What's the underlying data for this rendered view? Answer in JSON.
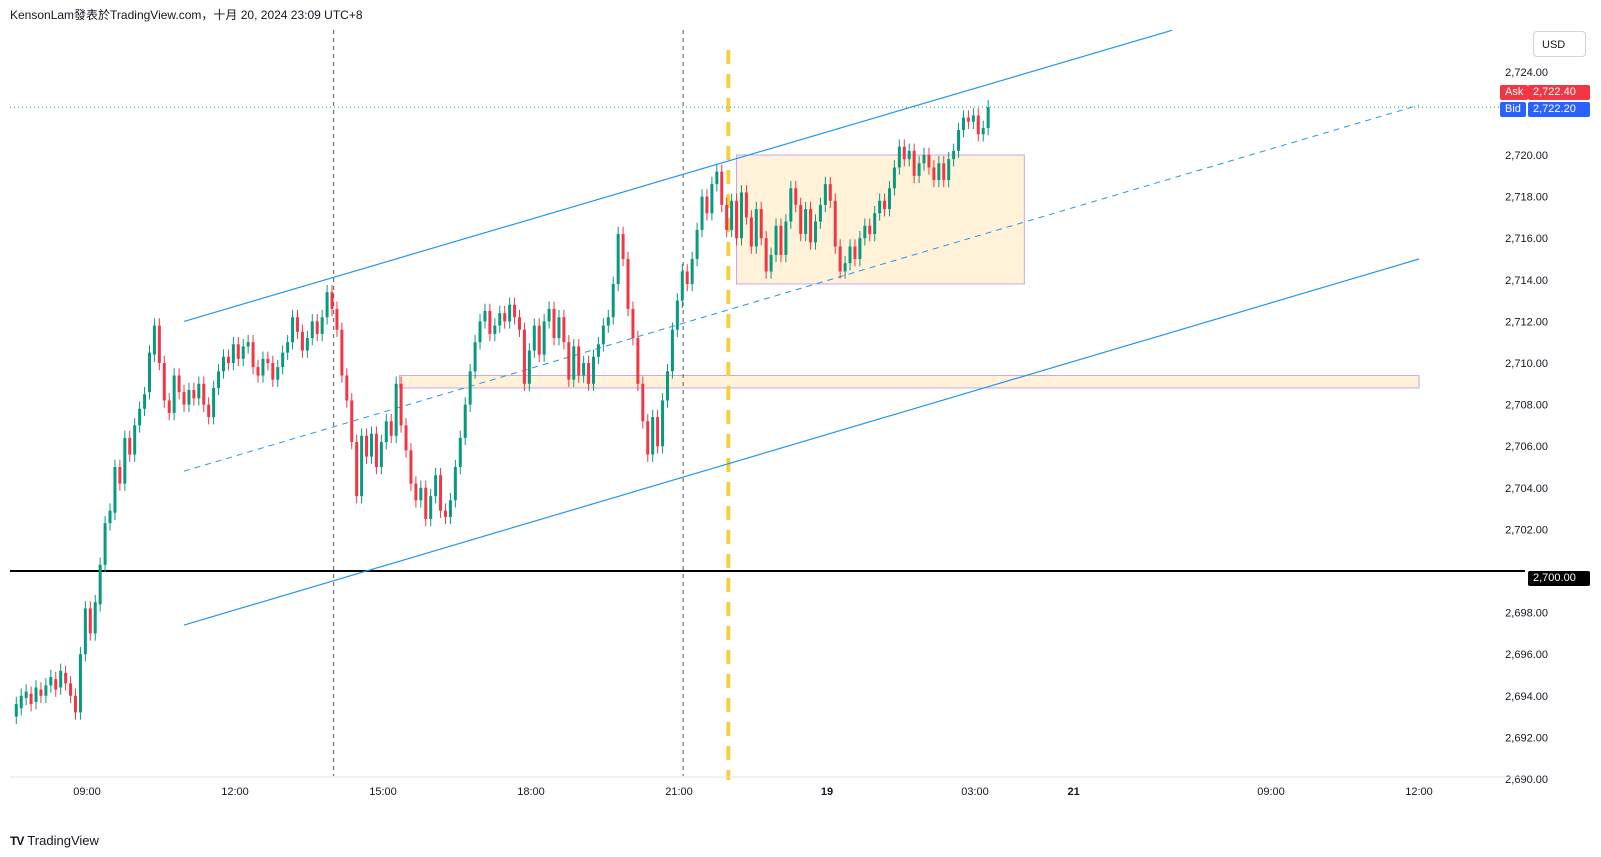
{
  "header": {
    "title": "KensonLam發表於TradingView.com，十月 20, 2024 23:09 UTC+8"
  },
  "currency": "USD",
  "footer": {
    "brand": "TradingView"
  },
  "quotes": {
    "ask_label": "Ask",
    "ask_value": "2,722.40",
    "bid_label": "Bid",
    "bid_value": "2,722.20",
    "level_value": "2,700.00"
  },
  "colors": {
    "up": "#089981",
    "down": "#f23645",
    "channel": "#2196f3",
    "zone_fill": "#fff2d9",
    "zone_border": "#c9a6e8",
    "session_marker": "#f5d142",
    "ask": "#f23645",
    "bid": "#2962ff"
  },
  "chart_data": {
    "type": "candlestick",
    "symbol_currency": "USD",
    "y_ticks": [
      "2,724.00",
      "2,722.00",
      "2,720.00",
      "2,718.00",
      "2,716.00",
      "2,714.00",
      "2,712.00",
      "2,710.00",
      "2,708.00",
      "2,706.00",
      "2,704.00",
      "2,702.00",
      "2,700.00",
      "2,698.00",
      "2,696.00",
      "2,694.00",
      "2,692.00",
      "2,690.00"
    ],
    "x_ticks": [
      {
        "label": "09:00",
        "t": 0
      },
      {
        "label": "12:00",
        "t": 180
      },
      {
        "label": "15:00",
        "t": 360
      },
      {
        "label": "18:00",
        "t": 540
      },
      {
        "label": "21:00",
        "t": 720
      },
      {
        "label": "19",
        "t": 900
      },
      {
        "label": "03:00",
        "t": 1080
      },
      {
        "label": "21",
        "t": 1200
      },
      {
        "label": "09:00",
        "t": 1440
      },
      {
        "label": "12:00",
        "t": 1620
      }
    ],
    "horizontal_level": 2700.0,
    "last_price_level": 2722.3,
    "ask": 2722.4,
    "bid": 2722.2,
    "candles_approx": [
      {
        "t": -86,
        "o": 2693.0,
        "c": 2693.6
      },
      {
        "t": -80,
        "o": 2693.4,
        "c": 2694.0
      },
      {
        "t": -74,
        "o": 2693.9,
        "c": 2694.2
      },
      {
        "t": -68,
        "o": 2694.1,
        "c": 2693.6
      },
      {
        "t": -62,
        "o": 2693.7,
        "c": 2694.4
      },
      {
        "t": -56,
        "o": 2694.3,
        "c": 2694.0
      },
      {
        "t": -50,
        "o": 2694.0,
        "c": 2694.5
      },
      {
        "t": -44,
        "o": 2694.5,
        "c": 2694.9
      },
      {
        "t": -38,
        "o": 2694.8,
        "c": 2694.3
      },
      {
        "t": -32,
        "o": 2694.4,
        "c": 2695.2
      },
      {
        "t": -26,
        "o": 2695.1,
        "c": 2694.6
      },
      {
        "t": -20,
        "o": 2694.6,
        "c": 2694.0
      },
      {
        "t": -14,
        "o": 2694.0,
        "c": 2693.2
      },
      {
        "t": -8,
        "o": 2693.2,
        "c": 2696.0
      },
      {
        "t": -2,
        "o": 2696.0,
        "c": 2698.2
      },
      {
        "t": 4,
        "o": 2698.2,
        "c": 2697.0
      },
      {
        "t": 10,
        "o": 2697.0,
        "c": 2698.5
      },
      {
        "t": 16,
        "o": 2698.4,
        "c": 2700.3
      },
      {
        "t": 22,
        "o": 2700.3,
        "c": 2702.3
      },
      {
        "t": 28,
        "o": 2702.3,
        "c": 2702.9
      },
      {
        "t": 34,
        "o": 2702.8,
        "c": 2705.0
      },
      {
        "t": 40,
        "o": 2705.0,
        "c": 2704.2
      },
      {
        "t": 46,
        "o": 2704.2,
        "c": 2706.4
      },
      {
        "t": 52,
        "o": 2706.4,
        "c": 2705.6
      },
      {
        "t": 58,
        "o": 2705.6,
        "c": 2707.0
      },
      {
        "t": 64,
        "o": 2707.0,
        "c": 2707.8
      },
      {
        "t": 70,
        "o": 2707.8,
        "c": 2708.5
      },
      {
        "t": 76,
        "o": 2708.6,
        "c": 2710.5
      },
      {
        "t": 82,
        "o": 2710.4,
        "c": 2711.8
      },
      {
        "t": 88,
        "o": 2711.8,
        "c": 2710.0
      },
      {
        "t": 94,
        "o": 2710.0,
        "c": 2708.2
      },
      {
        "t": 100,
        "o": 2708.2,
        "c": 2707.6
      },
      {
        "t": 106,
        "o": 2707.6,
        "c": 2709.4
      },
      {
        "t": 112,
        "o": 2709.4,
        "c": 2708.6
      },
      {
        "t": 118,
        "o": 2708.6,
        "c": 2708.0
      },
      {
        "t": 124,
        "o": 2708.0,
        "c": 2708.7
      },
      {
        "t": 130,
        "o": 2708.7,
        "c": 2708.3
      },
      {
        "t": 136,
        "o": 2708.3,
        "c": 2709.0
      },
      {
        "t": 142,
        "o": 2709.0,
        "c": 2708.0
      },
      {
        "t": 148,
        "o": 2708.0,
        "c": 2707.4
      },
      {
        "t": 154,
        "o": 2707.4,
        "c": 2708.8
      },
      {
        "t": 160,
        "o": 2708.8,
        "c": 2709.6
      },
      {
        "t": 166,
        "o": 2709.6,
        "c": 2710.3
      },
      {
        "t": 172,
        "o": 2710.3,
        "c": 2710.0
      },
      {
        "t": 178,
        "o": 2710.0,
        "c": 2710.9
      },
      {
        "t": 184,
        "o": 2710.9,
        "c": 2710.2
      },
      {
        "t": 190,
        "o": 2710.2,
        "c": 2710.8
      },
      {
        "t": 196,
        "o": 2710.8,
        "c": 2711.0
      },
      {
        "t": 202,
        "o": 2711.0,
        "c": 2709.8
      },
      {
        "t": 208,
        "o": 2709.8,
        "c": 2709.4
      },
      {
        "t": 214,
        "o": 2709.4,
        "c": 2710.2
      },
      {
        "t": 220,
        "o": 2710.2,
        "c": 2710.0
      },
      {
        "t": 226,
        "o": 2710.0,
        "c": 2709.2
      },
      {
        "t": 232,
        "o": 2709.2,
        "c": 2709.8
      },
      {
        "t": 238,
        "o": 2709.8,
        "c": 2710.5
      },
      {
        "t": 244,
        "o": 2710.5,
        "c": 2711.0
      },
      {
        "t": 250,
        "o": 2711.0,
        "c": 2712.2
      },
      {
        "t": 256,
        "o": 2712.2,
        "c": 2711.5
      },
      {
        "t": 262,
        "o": 2711.5,
        "c": 2710.6
      },
      {
        "t": 268,
        "o": 2710.6,
        "c": 2711.2
      },
      {
        "t": 274,
        "o": 2711.2,
        "c": 2712.0
      },
      {
        "t": 280,
        "o": 2712.0,
        "c": 2711.4
      },
      {
        "t": 286,
        "o": 2711.4,
        "c": 2712.2
      },
      {
        "t": 292,
        "o": 2712.2,
        "c": 2713.4
      },
      {
        "t": 298,
        "o": 2713.4,
        "c": 2712.6
      },
      {
        "t": 304,
        "o": 2712.6,
        "c": 2711.6
      },
      {
        "t": 310,
        "o": 2711.6,
        "c": 2709.4
      },
      {
        "t": 316,
        "o": 2709.4,
        "c": 2708.2
      },
      {
        "t": 322,
        "o": 2708.2,
        "c": 2706.2
      },
      {
        "t": 328,
        "o": 2706.2,
        "c": 2703.6
      },
      {
        "t": 334,
        "o": 2703.6,
        "c": 2706.5
      },
      {
        "t": 340,
        "o": 2706.5,
        "c": 2705.5
      },
      {
        "t": 346,
        "o": 2705.5,
        "c": 2706.6
      },
      {
        "t": 352,
        "o": 2706.6,
        "c": 2705.0
      },
      {
        "t": 358,
        "o": 2705.0,
        "c": 2706.2
      },
      {
        "t": 364,
        "o": 2706.2,
        "c": 2707.2
      },
      {
        "t": 370,
        "o": 2707.2,
        "c": 2706.5
      },
      {
        "t": 376,
        "o": 2706.5,
        "c": 2709.0
      },
      {
        "t": 382,
        "o": 2709.0,
        "c": 2707.0
      },
      {
        "t": 388,
        "o": 2707.0,
        "c": 2705.8
      },
      {
        "t": 394,
        "o": 2705.8,
        "c": 2704.2
      },
      {
        "t": 400,
        "o": 2704.2,
        "c": 2703.4
      },
      {
        "t": 406,
        "o": 2703.4,
        "c": 2704.0
      },
      {
        "t": 412,
        "o": 2704.0,
        "c": 2702.5
      },
      {
        "t": 418,
        "o": 2702.5,
        "c": 2703.6
      },
      {
        "t": 424,
        "o": 2703.6,
        "c": 2704.6
      },
      {
        "t": 430,
        "o": 2704.6,
        "c": 2702.9
      },
      {
        "t": 436,
        "o": 2702.9,
        "c": 2702.6
      },
      {
        "t": 442,
        "o": 2702.6,
        "c": 2703.4
      },
      {
        "t": 448,
        "o": 2703.4,
        "c": 2705.0
      },
      {
        "t": 454,
        "o": 2705.0,
        "c": 2706.4
      },
      {
        "t": 460,
        "o": 2706.4,
        "c": 2708.0
      },
      {
        "t": 466,
        "o": 2708.0,
        "c": 2709.6
      },
      {
        "t": 472,
        "o": 2709.6,
        "c": 2711.0
      },
      {
        "t": 478,
        "o": 2711.0,
        "c": 2712.0
      },
      {
        "t": 484,
        "o": 2712.0,
        "c": 2712.5
      },
      {
        "t": 490,
        "o": 2712.5,
        "c": 2711.4
      },
      {
        "t": 496,
        "o": 2711.4,
        "c": 2711.8
      },
      {
        "t": 502,
        "o": 2711.8,
        "c": 2712.4
      },
      {
        "t": 508,
        "o": 2712.4,
        "c": 2712.0
      },
      {
        "t": 514,
        "o": 2712.0,
        "c": 2712.8
      },
      {
        "t": 520,
        "o": 2712.8,
        "c": 2712.2
      },
      {
        "t": 526,
        "o": 2712.2,
        "c": 2711.6
      },
      {
        "t": 532,
        "o": 2711.6,
        "c": 2709.0
      },
      {
        "t": 538,
        "o": 2709.0,
        "c": 2710.6
      },
      {
        "t": 544,
        "o": 2710.6,
        "c": 2711.8
      },
      {
        "t": 550,
        "o": 2711.8,
        "c": 2710.4
      },
      {
        "t": 556,
        "o": 2710.4,
        "c": 2712.0
      },
      {
        "t": 562,
        "o": 2712.0,
        "c": 2712.6
      },
      {
        "t": 568,
        "o": 2712.6,
        "c": 2711.2
      },
      {
        "t": 574,
        "o": 2711.2,
        "c": 2712.2
      },
      {
        "t": 580,
        "o": 2712.2,
        "c": 2711.0
      },
      {
        "t": 586,
        "o": 2711.0,
        "c": 2709.2
      },
      {
        "t": 592,
        "o": 2709.2,
        "c": 2710.8
      },
      {
        "t": 598,
        "o": 2710.8,
        "c": 2709.4
      },
      {
        "t": 604,
        "o": 2709.4,
        "c": 2710.0
      },
      {
        "t": 610,
        "o": 2710.0,
        "c": 2709.0
      },
      {
        "t": 616,
        "o": 2709.0,
        "c": 2710.3
      },
      {
        "t": 622,
        "o": 2710.3,
        "c": 2710.9
      },
      {
        "t": 628,
        "o": 2710.9,
        "c": 2711.8
      },
      {
        "t": 634,
        "o": 2711.8,
        "c": 2712.2
      },
      {
        "t": 640,
        "o": 2712.2,
        "c": 2713.8
      },
      {
        "t": 646,
        "o": 2713.8,
        "c": 2716.2
      },
      {
        "t": 652,
        "o": 2716.2,
        "c": 2715.0
      },
      {
        "t": 658,
        "o": 2715.0,
        "c": 2712.6
      },
      {
        "t": 664,
        "o": 2712.6,
        "c": 2711.2
      },
      {
        "t": 670,
        "o": 2711.2,
        "c": 2709.0
      },
      {
        "t": 676,
        "o": 2709.0,
        "c": 2707.2
      },
      {
        "t": 682,
        "o": 2707.2,
        "c": 2705.6
      },
      {
        "t": 688,
        "o": 2705.6,
        "c": 2707.4
      },
      {
        "t": 694,
        "o": 2707.4,
        "c": 2706.0
      },
      {
        "t": 700,
        "o": 2706.0,
        "c": 2708.2
      },
      {
        "t": 706,
        "o": 2708.2,
        "c": 2709.6
      },
      {
        "t": 712,
        "o": 2709.6,
        "c": 2711.6
      },
      {
        "t": 718,
        "o": 2711.6,
        "c": 2713.0
      },
      {
        "t": 724,
        "o": 2713.0,
        "c": 2714.4
      },
      {
        "t": 730,
        "o": 2714.4,
        "c": 2713.8
      },
      {
        "t": 736,
        "o": 2713.8,
        "c": 2715.0
      },
      {
        "t": 742,
        "o": 2715.0,
        "c": 2716.4
      },
      {
        "t": 748,
        "o": 2716.4,
        "c": 2718.0
      },
      {
        "t": 754,
        "o": 2718.0,
        "c": 2717.2
      },
      {
        "t": 760,
        "o": 2717.2,
        "c": 2718.6
      },
      {
        "t": 766,
        "o": 2718.6,
        "c": 2719.2
      },
      {
        "t": 772,
        "o": 2719.2,
        "c": 2717.6
      },
      {
        "t": 778,
        "o": 2717.6,
        "c": 2716.4
      },
      {
        "t": 784,
        "o": 2716.4,
        "c": 2717.8
      },
      {
        "t": 790,
        "o": 2717.8,
        "c": 2716.0
      },
      {
        "t": 796,
        "o": 2716.0,
        "c": 2718.2
      },
      {
        "t": 802,
        "o": 2718.2,
        "c": 2717.0
      },
      {
        "t": 808,
        "o": 2717.0,
        "c": 2715.6
      },
      {
        "t": 814,
        "o": 2715.6,
        "c": 2717.4
      },
      {
        "t": 820,
        "o": 2717.4,
        "c": 2716.0
      },
      {
        "t": 826,
        "o": 2716.0,
        "c": 2714.4
      },
      {
        "t": 832,
        "o": 2714.4,
        "c": 2715.2
      },
      {
        "t": 838,
        "o": 2715.2,
        "c": 2716.6
      },
      {
        "t": 844,
        "o": 2716.6,
        "c": 2715.2
      },
      {
        "t": 850,
        "o": 2715.2,
        "c": 2716.8
      },
      {
        "t": 856,
        "o": 2716.8,
        "c": 2718.4
      },
      {
        "t": 862,
        "o": 2718.4,
        "c": 2717.6
      },
      {
        "t": 868,
        "o": 2717.6,
        "c": 2716.2
      },
      {
        "t": 874,
        "o": 2716.2,
        "c": 2717.4
      },
      {
        "t": 880,
        "o": 2717.4,
        "c": 2715.8
      },
      {
        "t": 886,
        "o": 2715.8,
        "c": 2716.8
      },
      {
        "t": 892,
        "o": 2716.8,
        "c": 2717.6
      },
      {
        "t": 898,
        "o": 2717.6,
        "c": 2718.6
      },
      {
        "t": 904,
        "o": 2718.6,
        "c": 2717.8
      },
      {
        "t": 910,
        "o": 2717.8,
        "c": 2715.6
      },
      {
        "t": 916,
        "o": 2715.6,
        "c": 2714.4
      },
      {
        "t": 922,
        "o": 2714.4,
        "c": 2714.8
      },
      {
        "t": 928,
        "o": 2714.8,
        "c": 2715.6
      },
      {
        "t": 934,
        "o": 2715.6,
        "c": 2715.0
      },
      {
        "t": 940,
        "o": 2715.0,
        "c": 2716.0
      },
      {
        "t": 946,
        "o": 2716.0,
        "c": 2716.6
      },
      {
        "t": 952,
        "o": 2716.6,
        "c": 2716.2
      },
      {
        "t": 958,
        "o": 2716.2,
        "c": 2717.2
      },
      {
        "t": 964,
        "o": 2717.2,
        "c": 2717.8
      },
      {
        "t": 970,
        "o": 2717.8,
        "c": 2717.4
      },
      {
        "t": 976,
        "o": 2717.4,
        "c": 2718.4
      },
      {
        "t": 982,
        "o": 2718.4,
        "c": 2719.4
      },
      {
        "t": 988,
        "o": 2719.4,
        "c": 2720.4
      },
      {
        "t": 994,
        "o": 2720.4,
        "c": 2719.8
      },
      {
        "t": 1000,
        "o": 2719.8,
        "c": 2720.2
      },
      {
        "t": 1006,
        "o": 2720.2,
        "c": 2719.0
      },
      {
        "t": 1012,
        "o": 2719.0,
        "c": 2719.6
      },
      {
        "t": 1018,
        "o": 2719.6,
        "c": 2720.0
      },
      {
        "t": 1024,
        "o": 2720.0,
        "c": 2719.4
      },
      {
        "t": 1030,
        "o": 2719.4,
        "c": 2718.8
      },
      {
        "t": 1036,
        "o": 2718.8,
        "c": 2719.6
      },
      {
        "t": 1042,
        "o": 2719.6,
        "c": 2718.8
      },
      {
        "t": 1048,
        "o": 2718.8,
        "c": 2719.8
      },
      {
        "t": 1054,
        "o": 2719.8,
        "c": 2720.2
      },
      {
        "t": 1060,
        "o": 2720.2,
        "c": 2721.2
      },
      {
        "t": 1066,
        "o": 2721.2,
        "c": 2721.8
      },
      {
        "t": 1072,
        "o": 2721.8,
        "c": 2721.6
      },
      {
        "t": 1078,
        "o": 2721.6,
        "c": 2721.9
      },
      {
        "t": 1084,
        "o": 2721.9,
        "c": 2721.0
      },
      {
        "t": 1090,
        "o": 2721.0,
        "c": 2721.3
      },
      {
        "t": 1096,
        "o": 2721.3,
        "c": 2722.3
      }
    ],
    "annotations": {
      "vertical_session_lines_t": [
        300,
        725
      ],
      "marker_line_t": 780,
      "upper_channel": [
        [
          118,
          2712.0
        ],
        [
          1320,
          2726.0
        ]
      ],
      "mid_channel": [
        [
          118,
          2704.8
        ],
        [
          1620,
          2722.4
        ]
      ],
      "lower_channel": [
        [
          118,
          2697.4
        ],
        [
          1620,
          2715.0
        ]
      ],
      "range_box": {
        "t0": 790,
        "t1": 1140,
        "p0": 2713.8,
        "p1": 2720.0
      },
      "support_zone": {
        "t0": 380,
        "t1": 1620,
        "p0": 2708.8,
        "p1": 2709.4
      }
    }
  }
}
